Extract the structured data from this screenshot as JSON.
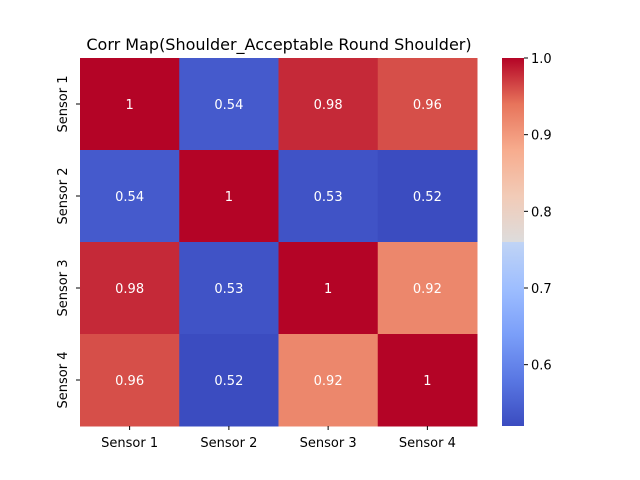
{
  "chart_data": {
    "type": "heatmap",
    "title": "Corr Map(Shoulder_Acceptable Round Shoulder)",
    "xlabel": "",
    "ylabel": "",
    "x_categories": [
      "Sensor 1",
      "Sensor 2",
      "Sensor 3",
      "Sensor 4"
    ],
    "y_categories": [
      "Sensor 1",
      "Sensor 2",
      "Sensor 3",
      "Sensor 4"
    ],
    "values": [
      [
        1,
        0.54,
        0.98,
        0.96
      ],
      [
        0.54,
        1,
        0.53,
        0.52
      ],
      [
        0.98,
        0.53,
        1,
        0.92
      ],
      [
        0.96,
        0.52,
        0.92,
        1
      ]
    ],
    "annotations": [
      [
        "1",
        "0.54",
        "0.98",
        "0.96"
      ],
      [
        "0.54",
        "1",
        "0.53",
        "0.52"
      ],
      [
        "0.98",
        "0.53",
        "1",
        "0.92"
      ],
      [
        "0.96",
        "0.52",
        "0.92",
        "1"
      ]
    ],
    "colormap": "coolwarm",
    "colorbar": {
      "min": 0.52,
      "max": 1.0,
      "ticks": [
        0.6,
        0.7,
        0.8,
        0.9,
        1.0
      ],
      "tick_labels": [
        "0.6",
        "0.7",
        "0.8",
        "0.9",
        "1.0"
      ]
    },
    "grid": false
  }
}
